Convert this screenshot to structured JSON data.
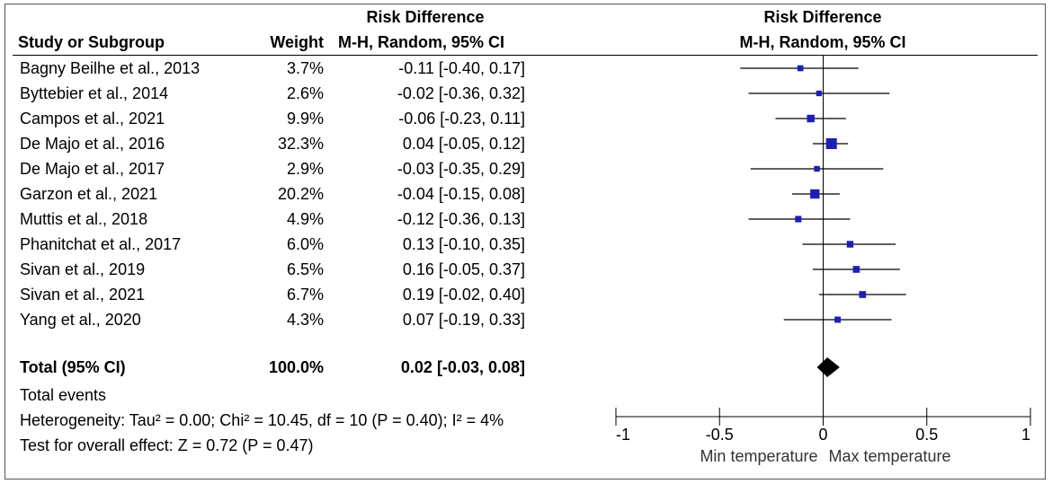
{
  "header": {
    "effect_measure": "Risk Difference",
    "col_study": "Study or Subgroup",
    "col_weight": "Weight",
    "col_method": "M-H, Random, 95% CI",
    "plot_title": "Risk Difference",
    "plot_method": "M-H, Random, 95% CI"
  },
  "studies": [
    {
      "name": "Bagny Beilhe et al., 2013",
      "weight": "3.7%",
      "ci_text": "-0.11 [-0.40, 0.17]"
    },
    {
      "name": "Byttebier et al., 2014",
      "weight": "2.6%",
      "ci_text": "-0.02 [-0.36, 0.32]"
    },
    {
      "name": "Campos et al.,  2021",
      "weight": "9.9%",
      "ci_text": "-0.06 [-0.23, 0.11]"
    },
    {
      "name": "De Majo et al., 2016",
      "weight": "32.3%",
      "ci_text": "0.04 [-0.05, 0.12]"
    },
    {
      "name": "De Majo et al., 2017",
      "weight": "2.9%",
      "ci_text": "-0.03 [-0.35, 0.29]"
    },
    {
      "name": "Garzon et al., 2021",
      "weight": "20.2%",
      "ci_text": "-0.04 [-0.15, 0.08]"
    },
    {
      "name": "Muttis et al., 2018",
      "weight": "4.9%",
      "ci_text": "-0.12 [-0.36, 0.13]"
    },
    {
      "name": "Phanitchat et al., 2017",
      "weight": "6.0%",
      "ci_text": "0.13 [-0.10, 0.35]"
    },
    {
      "name": "Sivan et al., 2019",
      "weight": "6.5%",
      "ci_text": "0.16 [-0.05, 0.37]"
    },
    {
      "name": "Sivan et al., 2021",
      "weight": "6.7%",
      "ci_text": "0.19 [-0.02, 0.40]"
    },
    {
      "name": "Yang et al., 2020",
      "weight": "4.3%",
      "ci_text": "0.07 [-0.19, 0.33]"
    }
  ],
  "total": {
    "label": "Total (95% CI)",
    "weight": "100.0%",
    "ci_text": "0.02 [-0.03, 0.08]"
  },
  "footer": {
    "total_events": "Total events",
    "heterogeneity": "Heterogeneity: Tau² = 0.00; Chi² = 10.45, df = 10 (P = 0.40); I² = 4%",
    "overall_effect": "Test for overall effect: Z = 0.72 (P = 0.47)"
  },
  "axis": {
    "left_label": "Min temperature",
    "right_label": "Max temperature"
  },
  "chart_data": {
    "type": "forest",
    "title": "Risk Difference",
    "subtitle": "M-H, Random, 95% CI",
    "xlim": [
      -1,
      1
    ],
    "ticks": [
      -1,
      -0.5,
      0,
      0.5,
      1
    ],
    "tick_labels": [
      "-1",
      "-0.5",
      "0",
      "0.5",
      "1"
    ],
    "xlabel_left": "Min temperature",
    "xlabel_right": "Max temperature",
    "series": [
      {
        "name": "Bagny Beilhe et al., 2013",
        "estimate": -0.11,
        "lower": -0.4,
        "upper": 0.17,
        "weight": 3.7
      },
      {
        "name": "Byttebier et al., 2014",
        "estimate": -0.02,
        "lower": -0.36,
        "upper": 0.32,
        "weight": 2.6
      },
      {
        "name": "Campos et al.,  2021",
        "estimate": -0.06,
        "lower": -0.23,
        "upper": 0.11,
        "weight": 9.9
      },
      {
        "name": "De Majo et al., 2016",
        "estimate": 0.04,
        "lower": -0.05,
        "upper": 0.12,
        "weight": 32.3
      },
      {
        "name": "De Majo et al., 2017",
        "estimate": -0.03,
        "lower": -0.35,
        "upper": 0.29,
        "weight": 2.9
      },
      {
        "name": "Garzon et al., 2021",
        "estimate": -0.04,
        "lower": -0.15,
        "upper": 0.08,
        "weight": 20.2
      },
      {
        "name": "Muttis et al., 2018",
        "estimate": -0.12,
        "lower": -0.36,
        "upper": 0.13,
        "weight": 4.9
      },
      {
        "name": "Phanitchat et al., 2017",
        "estimate": 0.13,
        "lower": -0.1,
        "upper": 0.35,
        "weight": 6.0
      },
      {
        "name": "Sivan et al., 2019",
        "estimate": 0.16,
        "lower": -0.05,
        "upper": 0.37,
        "weight": 6.5
      },
      {
        "name": "Sivan et al., 2021",
        "estimate": 0.19,
        "lower": -0.02,
        "upper": 0.4,
        "weight": 6.7
      },
      {
        "name": "Yang et al., 2020",
        "estimate": 0.07,
        "lower": -0.19,
        "upper": 0.33,
        "weight": 4.3
      }
    ],
    "pooled": {
      "name": "Total (95% CI)",
      "estimate": 0.02,
      "lower": -0.03,
      "upper": 0.08,
      "weight": 100.0
    },
    "colors": {
      "marker": "#1f1fb4",
      "line": "#000000",
      "diamond": "#000000"
    }
  }
}
